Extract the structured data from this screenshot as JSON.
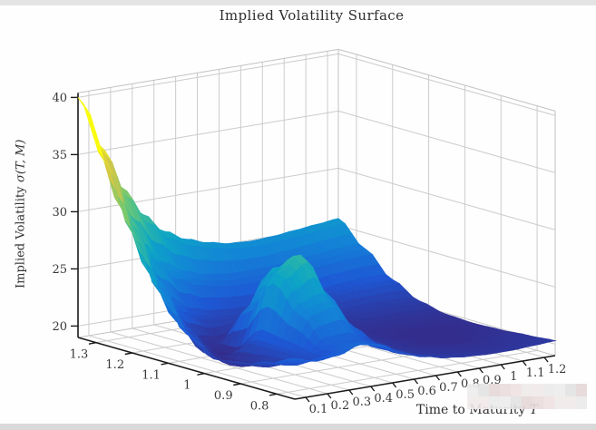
{
  "page": {
    "top_strip_color": "#e4e4e4",
    "bottom_strip_color": "#d9d9d9",
    "background": "#fefefe"
  },
  "chart_data": {
    "type": "surface",
    "title": "Implied Volatility Surface",
    "xlabel": {
      "text": "Time to Maturity",
      "var": "T"
    },
    "zlabel": {
      "text": "Implied Volatility",
      "var": "σ(T, M)"
    },
    "x_axis": {
      "name": "time-to-maturity",
      "ticks": [
        "0.1",
        "0.2",
        "0.3",
        "0.4",
        "0.5",
        "0.6",
        "0.7",
        "0.8",
        "0.9",
        "1",
        "1.1",
        "1.2"
      ],
      "range": [
        0.05,
        1.25
      ]
    },
    "y_axis": {
      "name": "moneyness",
      "ticks": [
        "1.3",
        "1.2",
        "1.1",
        "1",
        "0.9",
        "0.8"
      ],
      "range": [
        0.75,
        1.35
      ]
    },
    "z_axis": {
      "name": "implied-volatility",
      "ticks": [
        "20",
        "25",
        "30",
        "35",
        "40"
      ],
      "range": [
        19,
        40.4
      ]
    },
    "surface": {
      "T": [
        0.05,
        0.15,
        0.25,
        0.35,
        0.45,
        0.55,
        0.65,
        0.75,
        0.85,
        0.95,
        1.05,
        1.15,
        1.25
      ],
      "M": [
        1.35,
        1.275,
        1.2,
        1.125,
        1.05,
        0.975,
        0.9,
        0.825,
        0.75
      ],
      "volatility": [
        [
          40.0,
          35.5,
          31.5,
          28.8,
          27.0,
          26.0,
          25.4,
          25.0,
          24.9,
          25.0,
          25.2,
          25.4,
          25.6
        ],
        [
          35.0,
          30.0,
          26.5,
          24.5,
          23.5,
          23.0,
          22.8,
          22.8,
          22.9,
          23.1,
          23.3,
          23.5,
          23.6
        ],
        [
          29.5,
          25.2,
          22.5,
          21.3,
          20.9,
          20.8,
          20.8,
          20.9,
          21.1,
          21.3,
          21.5,
          21.6,
          21.6
        ],
        [
          25.0,
          21.8,
          20.0,
          19.8,
          20.3,
          20.5,
          20.5,
          20.4,
          20.4,
          20.5,
          20.5,
          20.5,
          20.4
        ],
        [
          22.0,
          19.9,
          19.5,
          23.5,
          26.5,
          24.0,
          21.0,
          20.2,
          19.9,
          19.9,
          19.9,
          19.9,
          19.9
        ],
        [
          20.5,
          19.6,
          21.5,
          27.0,
          28.3,
          25.0,
          21.2,
          20.1,
          19.8,
          19.7,
          19.7,
          19.7,
          19.8
        ],
        [
          20.8,
          20.2,
          21.5,
          24.5,
          25.0,
          22.5,
          20.8,
          20.0,
          19.8,
          19.7,
          19.7,
          19.8,
          19.9
        ],
        [
          21.5,
          21.0,
          21.3,
          22.3,
          22.3,
          21.3,
          20.5,
          20.1,
          20.0,
          19.9,
          19.9,
          20.0,
          20.1
        ],
        [
          22.5,
          22.0,
          22.2,
          22.8,
          22.4,
          21.4,
          20.8,
          20.4,
          20.2,
          20.1,
          20.1,
          20.2,
          20.3
        ]
      ]
    },
    "colormap": {
      "name": "parula",
      "stops": [
        [
          0.0,
          "#352a87"
        ],
        [
          0.14,
          "#1e58d5"
        ],
        [
          0.29,
          "#1385d6"
        ],
        [
          0.43,
          "#0da5c6"
        ],
        [
          0.57,
          "#3bbd99"
        ],
        [
          0.71,
          "#84ca66"
        ],
        [
          0.86,
          "#d3c649"
        ],
        [
          1.0,
          "#f9fb0e"
        ]
      ],
      "value_range": [
        19.5,
        36
      ]
    },
    "grid_color": "#cccccc",
    "box_edge_color": "#c3c3c3",
    "axis_color": "#1b1b1b",
    "tick_label_color": "#383838"
  },
  "watermark": {
    "rows": 2,
    "cols": 11,
    "colors": [
      "#ededed",
      "#e9dcdc",
      "#f1e9e9",
      "#e3e3e3",
      "#efe2e2",
      "#eaeaea",
      "#e6d7d7",
      "#f0eaea"
    ]
  }
}
